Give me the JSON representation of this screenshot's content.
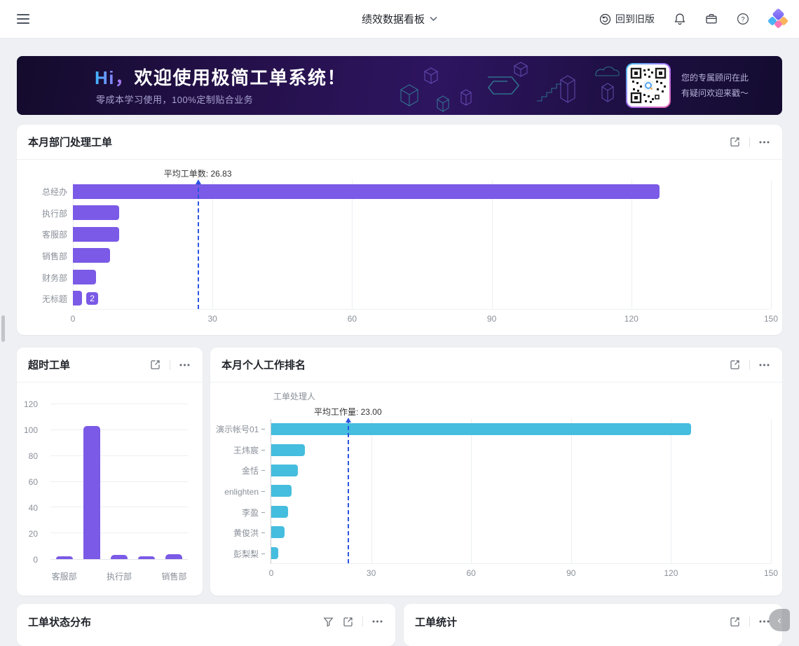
{
  "navbar": {
    "title": "绩效数据看板",
    "back_to_old": "回到旧版"
  },
  "banner": {
    "hi": "Hi，",
    "headline": "欢迎使用极简工单系统！",
    "subtitle": "零成本学习使用，100%定制贴合业务",
    "qr_caption": [
      "您的专属顾问在此",
      "有疑问欢迎来戳～"
    ]
  },
  "cards": {
    "dept": {
      "title": "本月部门处理工单"
    },
    "overtime": {
      "title": "超时工单"
    },
    "personal": {
      "title": "本月个人工作排名"
    },
    "status_dist": {
      "title": "工单状态分布"
    },
    "stats": {
      "title": "工单统计"
    }
  },
  "chart_data": [
    {
      "type": "bar",
      "orientation": "horizontal",
      "title": "本月部门处理工单",
      "categories": [
        "总经办",
        "执行部",
        "客服部",
        "销售部",
        "财务部",
        "无标题"
      ],
      "values": [
        126,
        10,
        10,
        8,
        5,
        2
      ],
      "xlim": [
        0,
        150
      ],
      "xticks": [
        0,
        30,
        60,
        90,
        120,
        150
      ],
      "average": 26.83,
      "average_label": "平均工单数: 26.83",
      "value_label_index": 5,
      "value_label": "2",
      "bar_color": "#7a5ae6",
      "grid": true,
      "legend": "none"
    },
    {
      "type": "bar",
      "orientation": "vertical",
      "title": "超时工单",
      "categories": [
        "客服部",
        "",
        "执行部",
        "",
        "销售部"
      ],
      "values": [
        2,
        103,
        3,
        2,
        4
      ],
      "ylim": [
        0,
        120
      ],
      "yticks": [
        0,
        20,
        40,
        60,
        80,
        100,
        120
      ],
      "bar_color": "#7a5ae6",
      "grid": true,
      "legend": "none"
    },
    {
      "type": "bar",
      "orientation": "horizontal",
      "title": "本月个人工作排名",
      "axis_title": "工单处理人",
      "categories": [
        "演示帐号01",
        "王炜宸",
        "金恬",
        "enlighten",
        "李盈",
        "黄俊洪",
        "彭梨梨"
      ],
      "values": [
        126,
        10,
        8,
        6,
        5,
        4,
        2
      ],
      "xlim": [
        0,
        150
      ],
      "xticks": [
        0,
        30,
        60,
        90,
        120,
        150
      ],
      "average": 23.0,
      "average_label": "平均工作量: 23.00",
      "bar_color": "#45bdde",
      "grid": true,
      "legend": "none"
    }
  ],
  "ui": {
    "collapse_handle": "‹"
  },
  "colors": {
    "purple_bar": "#7a5ae6",
    "cyan_bar": "#45bdde",
    "average_line": "#2b53e3",
    "notification_dot": "#f5483f",
    "banner_bg": "#2e1560",
    "card_bg": "#ffffff",
    "page_bg": "#eef0f3"
  }
}
